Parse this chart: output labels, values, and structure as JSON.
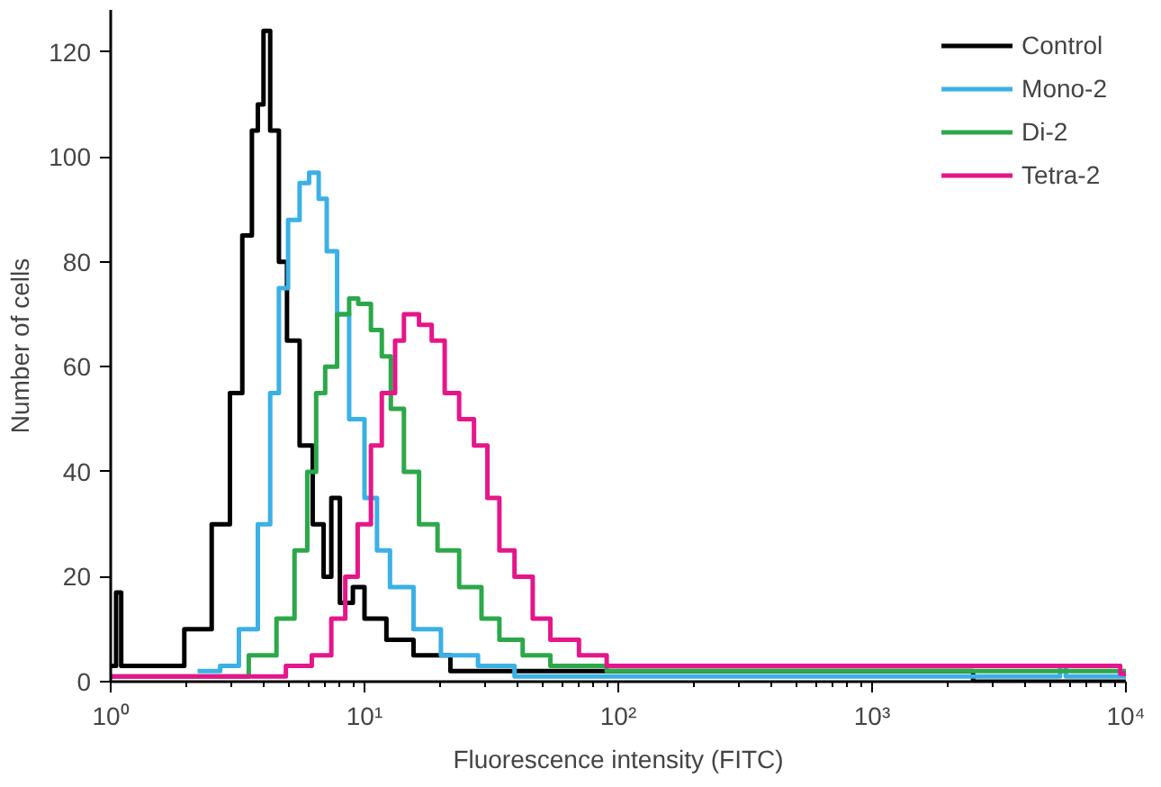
{
  "chart_data": {
    "type": "step",
    "xlabel": "Fluorescence intensity (FITC)",
    "ylabel": "Number of cells",
    "log": "x",
    "xlim": [
      1,
      10000
    ],
    "ylim": [
      0,
      128
    ],
    "xticks": [
      {
        "value": 1,
        "label": "10⁰"
      },
      {
        "value": 10,
        "label": "10¹"
      },
      {
        "value": 100,
        "label": "10²"
      },
      {
        "value": 1000,
        "label": "10³"
      },
      {
        "value": 10000,
        "label": "10⁴"
      }
    ],
    "yticks": [
      0,
      20,
      40,
      60,
      80,
      100,
      120
    ],
    "grid": false,
    "legend": "top right",
    "marker": "none",
    "line_style": "solid",
    "series": [
      {
        "name": "Control",
        "color": "#000000",
        "x": [
          1,
          1.05,
          1.1,
          1.5,
          1.95,
          2.5,
          2.95,
          3.3,
          3.6,
          3.8,
          4.0,
          4.25,
          4.6,
          4.95,
          5.55,
          6.25,
          6.9,
          7.4,
          8.0,
          9.0,
          10.0,
          12.2,
          15.6,
          21.8,
          33,
          2500,
          10000
        ],
        "values": [
          3,
          17,
          3,
          3,
          10,
          30,
          55,
          85,
          105,
          110,
          124,
          105,
          80,
          65,
          45,
          30,
          20,
          35,
          15,
          18,
          12,
          8,
          5,
          2,
          2,
          0,
          0
        ]
      },
      {
        "name": "Mono-2",
        "color": "#3bb0e5",
        "x": [
          2.2,
          2.7,
          3.2,
          3.8,
          4.25,
          4.6,
          5.0,
          5.55,
          6.05,
          6.6,
          7.1,
          7.8,
          8.7,
          10,
          11.2,
          12.6,
          15.6,
          20,
          28,
          39,
          5300,
          5500,
          5800,
          10000
        ],
        "values": [
          2,
          3,
          10,
          30,
          55,
          75,
          88,
          95,
          97,
          92,
          82,
          70,
          50,
          35,
          25,
          18,
          10,
          5,
          3,
          1,
          1,
          3,
          1,
          1
        ]
      },
      {
        "name": "Di-2",
        "color": "#2ca84a",
        "x": [
          1,
          2.7,
          3.5,
          4.5,
          5.3,
          5.95,
          6.45,
          7.0,
          7.8,
          8.7,
          9.45,
          10.6,
          11.7,
          12.7,
          14.3,
          16.4,
          19.4,
          23.6,
          28.9,
          34,
          42,
          54,
          90,
          10000
        ],
        "values": [
          1,
          1,
          5,
          12,
          25,
          40,
          55,
          60,
          70,
          73,
          72,
          67,
          62,
          52,
          40,
          30,
          25,
          18,
          12,
          8,
          5,
          3,
          2,
          1
        ]
      },
      {
        "name": "Tetra-2",
        "color": "#e5168a",
        "x": [
          1,
          3,
          4.9,
          6.2,
          7.4,
          8.4,
          9.4,
          10.6,
          11.7,
          13.2,
          14.3,
          16.4,
          18.4,
          20.7,
          23.6,
          27,
          30.5,
          34,
          39,
          46,
          54,
          70,
          90,
          9500,
          10000
        ],
        "values": [
          1,
          1,
          3,
          5,
          12,
          20,
          30,
          45,
          55,
          65,
          70,
          68,
          65,
          55,
          50,
          45,
          35,
          25,
          20,
          12,
          8,
          5,
          3,
          1.5,
          2
        ]
      }
    ]
  }
}
